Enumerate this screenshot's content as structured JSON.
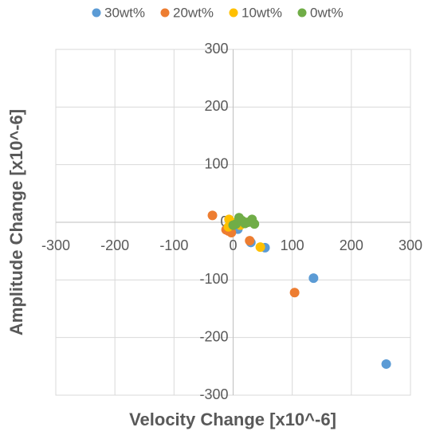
{
  "chart_data": {
    "type": "scatter",
    "x_label": "Velocity Change [x10^-6]",
    "y_label": "Amplitude Change [x10^-6]",
    "xlim": [
      -300,
      300
    ],
    "ylim": [
      -300,
      300
    ],
    "xticks": [
      -300,
      -200,
      -100,
      0,
      100,
      200,
      300
    ],
    "yticks": [
      -300,
      -200,
      -100,
      0,
      100,
      200,
      300
    ],
    "grid": true,
    "legend": "top",
    "series": [
      {
        "name": "30wt%",
        "color": "#5b9bd5",
        "x": [
          259,
          136,
          54,
          30,
          8,
          5
        ],
        "values": [
          -246,
          -97,
          -44,
          -35,
          -12,
          -5
        ]
      },
      {
        "name": "20wt%",
        "color": "#ed7d31",
        "x": [
          -35,
          104,
          28,
          -8,
          -3,
          -12
        ],
        "values": [
          12,
          -122,
          -32,
          -15,
          -18,
          -13
        ]
      },
      {
        "name": "10wt%",
        "color": "#ffc000",
        "x": [
          46,
          -7,
          -5,
          -8,
          5,
          12,
          20
        ],
        "values": [
          -43,
          5,
          -3,
          -8,
          0,
          -5,
          0
        ]
      },
      {
        "name": "0wt%",
        "color": "#70ad47",
        "x": [
          10,
          5,
          15,
          25,
          32,
          36,
          0,
          20
        ],
        "values": [
          8,
          -3,
          3,
          0,
          5,
          -3,
          -5,
          -2
        ]
      }
    ]
  }
}
